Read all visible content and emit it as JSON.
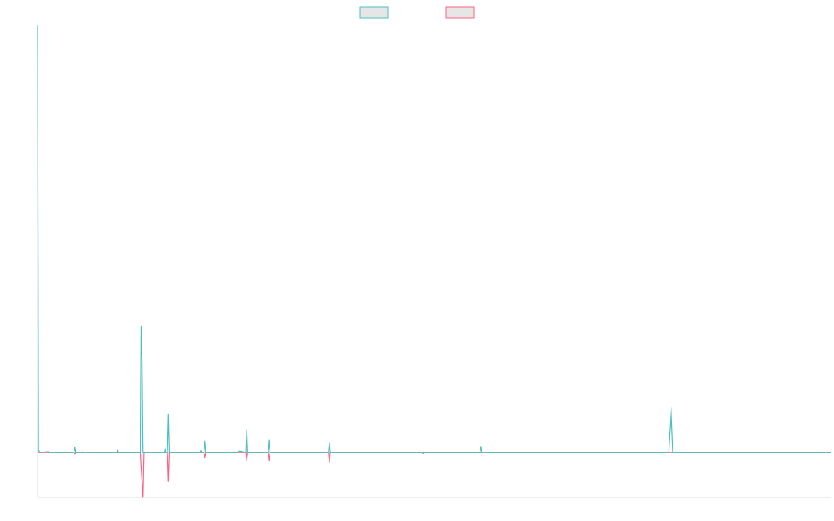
{
  "chart_data": {
    "type": "line",
    "title": "",
    "xlabel": "",
    "ylabel": "",
    "legend": {
      "placement": "top-center",
      "entries": [
        {
          "name": "",
          "color": "#4bc0c0"
        },
        {
          "name": "",
          "color": "#ff6384"
        }
      ]
    },
    "grid": false,
    "xlim": [
      0,
      1000
    ],
    "ylim": [
      -10,
      95
    ],
    "series": [
      {
        "name": "",
        "color": "#4bc0c0",
        "points": [
          [
            0,
            95
          ],
          [
            1,
            0.5
          ],
          [
            3,
            0
          ],
          [
            14,
            0.2
          ],
          [
            15,
            0
          ],
          [
            46,
            0
          ],
          [
            47,
            1.2
          ],
          [
            48,
            0
          ],
          [
            56,
            0
          ],
          [
            57,
            0.2
          ],
          [
            58,
            0
          ],
          [
            100,
            0
          ],
          [
            101,
            0.5
          ],
          [
            102,
            0
          ],
          [
            130,
            0
          ],
          [
            131,
            28
          ],
          [
            132,
            20
          ],
          [
            133,
            0
          ],
          [
            160,
            0
          ],
          [
            161,
            1
          ],
          [
            162,
            0
          ],
          [
            164,
            0
          ],
          [
            165,
            8.5
          ],
          [
            166,
            0
          ],
          [
            205,
            0
          ],
          [
            206,
            0.4
          ],
          [
            207,
            0
          ],
          [
            210,
            0
          ],
          [
            211,
            2.5
          ],
          [
            212,
            0
          ],
          [
            243,
            0
          ],
          [
            244,
            0.2
          ],
          [
            245,
            0
          ],
          [
            252,
            0
          ],
          [
            253,
            0.3
          ],
          [
            256,
            0.3
          ],
          [
            263,
            0
          ],
          [
            264,
            5
          ],
          [
            265,
            0
          ],
          [
            291,
            0
          ],
          [
            292,
            2.8
          ],
          [
            293,
            0
          ],
          [
            367,
            0
          ],
          [
            368,
            2.2
          ],
          [
            369,
            0
          ],
          [
            485,
            0
          ],
          [
            486,
            0.2
          ],
          [
            487,
            0
          ],
          [
            558,
            0
          ],
          [
            559,
            1.3
          ],
          [
            560,
            0
          ],
          [
            796,
            0
          ],
          [
            799,
            10
          ],
          [
            801,
            0
          ],
          [
            1000,
            0
          ]
        ]
      },
      {
        "name": "",
        "color": "#ff6384",
        "points": [
          [
            0,
            0
          ],
          [
            46,
            0
          ],
          [
            47,
            -0.4
          ],
          [
            48,
            0
          ],
          [
            130,
            0
          ],
          [
            133,
            -10
          ],
          [
            134,
            0
          ],
          [
            164,
            0
          ],
          [
            165,
            -6.5
          ],
          [
            166,
            0
          ],
          [
            210,
            0
          ],
          [
            211,
            -1.2
          ],
          [
            212,
            0
          ],
          [
            263,
            0
          ],
          [
            264,
            -1.8
          ],
          [
            265,
            0
          ],
          [
            291,
            0
          ],
          [
            292,
            -1.8
          ],
          [
            293,
            0
          ],
          [
            367,
            0
          ],
          [
            368,
            -2.2
          ],
          [
            369,
            0
          ],
          [
            485,
            0
          ],
          [
            486,
            -0.4
          ],
          [
            487,
            0
          ],
          [
            1000,
            0
          ]
        ]
      }
    ]
  }
}
